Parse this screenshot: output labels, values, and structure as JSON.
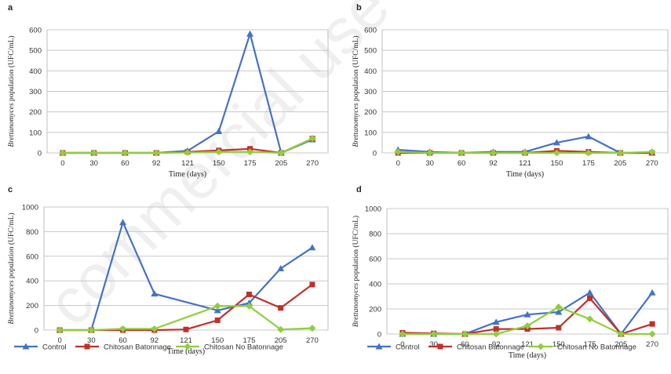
{
  "watermark": "commercial use",
  "chart_data": [
    {
      "panel": "a",
      "type": "line",
      "categories": [
        "0",
        "30",
        "60",
        "92",
        "121",
        "150",
        "175",
        "205",
        "270"
      ],
      "ylim": [
        0,
        600
      ],
      "yticks": [
        0,
        100,
        200,
        300,
        400,
        500,
        600
      ],
      "xlabel": "Time (days)",
      "ylabel_italic": "Brettanomyces",
      "ylabel_rest": " population (UFC/mL)",
      "grid": "horizontal",
      "series": [
        {
          "name": "Control",
          "color": "#4472c4",
          "marker": "triangle",
          "values": [
            0,
            0,
            0,
            0,
            10,
            105,
            580,
            0,
            65
          ]
        },
        {
          "name": "Chitosan Batonnage",
          "color": "#c0302b",
          "marker": "square",
          "values": [
            0,
            0,
            0,
            0,
            5,
            12,
            20,
            0,
            70
          ]
        },
        {
          "name": "Chitosan No Batonnage",
          "color": "#8fcf3c",
          "marker": "diamond",
          "values": [
            0,
            0,
            0,
            0,
            2,
            5,
            5,
            0,
            70
          ]
        }
      ]
    },
    {
      "panel": "b",
      "type": "line",
      "categories": [
        "0",
        "30",
        "60",
        "92",
        "121",
        "150",
        "175",
        "205",
        "270"
      ],
      "ylim": [
        0,
        600
      ],
      "yticks": [
        0,
        100,
        200,
        300,
        400,
        500,
        600
      ],
      "xlabel": "Time (days)",
      "ylabel_italic": "Brettanomyces",
      "ylabel_rest": " population (UFC/mL)",
      "grid": "horizontal",
      "series": [
        {
          "name": "Control",
          "color": "#4472c4",
          "marker": "triangle",
          "values": [
            15,
            5,
            0,
            5,
            5,
            50,
            80,
            0,
            0
          ]
        },
        {
          "name": "Chitosan Batonnage",
          "color": "#c0302b",
          "marker": "square",
          "values": [
            0,
            0,
            0,
            0,
            0,
            10,
            5,
            0,
            0
          ]
        },
        {
          "name": "Chitosan No Batonnage",
          "color": "#8fcf3c",
          "marker": "diamond",
          "values": [
            5,
            0,
            0,
            0,
            0,
            0,
            0,
            0,
            5
          ]
        }
      ]
    },
    {
      "panel": "c",
      "type": "line",
      "categories": [
        "0",
        "30",
        "60",
        "92",
        "121",
        "150",
        "175",
        "205",
        "270"
      ],
      "ylim": [
        0,
        1000
      ],
      "yticks": [
        0,
        200,
        400,
        600,
        800,
        1000
      ],
      "xlabel": "Time (days)",
      "ylabel_italic": "Brettanomyces",
      "ylabel_rest": " population (UFC/mL)",
      "grid": "horizontal",
      "series": [
        {
          "name": "Control",
          "color": "#4472c4",
          "marker": "triangle",
          "values": [
            0,
            0,
            875,
            295,
            null,
            160,
            220,
            500,
            670
          ]
        },
        {
          "name": "Chitosan Batonnage",
          "color": "#c0302b",
          "marker": "square",
          "values": [
            0,
            0,
            0,
            0,
            5,
            80,
            290,
            180,
            370
          ]
        },
        {
          "name": "Chitosan No Batonnage",
          "color": "#8fcf3c",
          "marker": "diamond",
          "values": [
            0,
            0,
            10,
            10,
            null,
            195,
            195,
            5,
            15
          ]
        }
      ]
    },
    {
      "panel": "d",
      "type": "line",
      "categories": [
        "0",
        "30",
        "60",
        "92",
        "121",
        "150",
        "175",
        "205",
        "270"
      ],
      "ylim": [
        0,
        1000
      ],
      "yticks": [
        0,
        200,
        400,
        600,
        800,
        1000
      ],
      "xlabel": "Time (days)",
      "ylabel_italic": "Brettanomyces",
      "ylabel_rest": " population (UFC/mL)",
      "grid": "horizontal",
      "series": [
        {
          "name": "Control",
          "color": "#4472c4",
          "marker": "triangle",
          "values": [
            0,
            0,
            0,
            95,
            155,
            175,
            330,
            0,
            330
          ]
        },
        {
          "name": "Chitosan Batonnage",
          "color": "#c0302b",
          "marker": "square",
          "values": [
            10,
            5,
            0,
            40,
            40,
            50,
            285,
            0,
            80
          ]
        },
        {
          "name": "Chitosan No Batonnage",
          "color": "#8fcf3c",
          "marker": "diamond",
          "values": [
            0,
            0,
            0,
            0,
            65,
            215,
            120,
            0,
            0
          ]
        }
      ]
    }
  ],
  "legend": {
    "items": [
      {
        "label": "Control",
        "color": "#4472c4",
        "marker": "triangle"
      },
      {
        "label": "Chitosan Batonnage",
        "color": "#c0302b",
        "marker": "square"
      },
      {
        "label": "Chitosan No Batonnage",
        "color": "#8fcf3c",
        "marker": "diamond"
      }
    ]
  }
}
